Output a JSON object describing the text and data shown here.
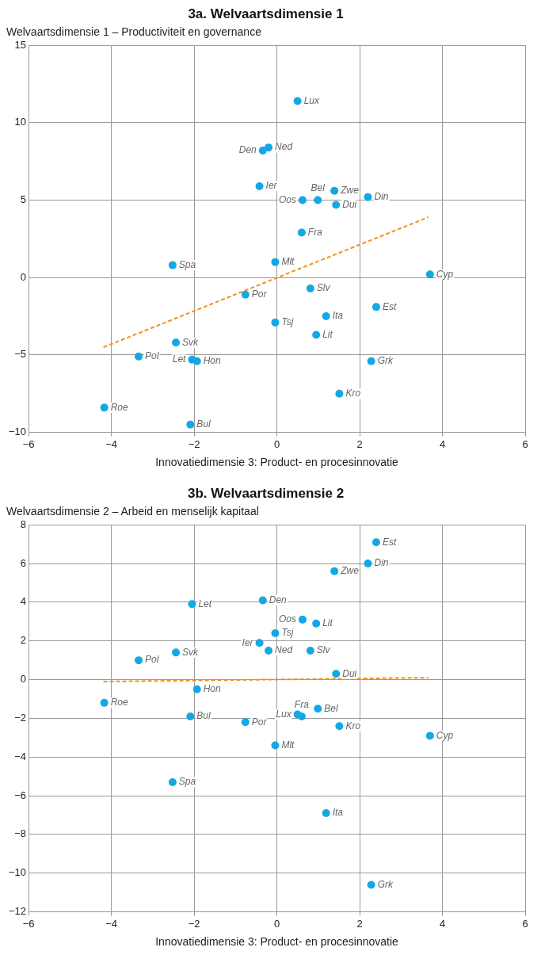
{
  "chart_data": [
    {
      "type": "scatter",
      "title": "3a. Welvaartsdimensie 1",
      "subtitle": "Welvaartsdimensie 1 – Productiviteit en governance",
      "xlabel": "Innovatiedimensie 3: Product- en procesinnovatie",
      "xlim": [
        -6,
        6
      ],
      "xticks": [
        {
          "value": -6,
          "label": "−6"
        },
        {
          "value": -4,
          "label": "−4"
        },
        {
          "value": -2,
          "label": "−2"
        },
        0,
        2,
        4,
        6
      ],
      "ylim": [
        -10,
        15
      ],
      "yticks": [
        {
          "value": -10,
          "label": "−10"
        },
        {
          "value": -5,
          "label": "−5"
        },
        0,
        5,
        10,
        15
      ],
      "grid": true,
      "legend": false,
      "marker": "circle",
      "series": [
        {
          "type": "scatter",
          "color": "#13a8e4",
          "x": [
            0.5,
            -0.2,
            -0.34,
            -0.42,
            0.62,
            0.99,
            1.39,
            1.43,
            2.2,
            0.6,
            -2.52,
            -0.04,
            3.7,
            -0.76,
            0.81,
            1.19,
            2.4,
            -0.04,
            0.95,
            -2.44,
            -3.34,
            -2.05,
            -1.93,
            2.28,
            1.51,
            -4.17,
            -2.09
          ],
          "values": [
            11.4,
            8.4,
            8.2,
            5.9,
            5.0,
            5.0,
            5.6,
            4.7,
            5.2,
            2.9,
            0.8,
            1.0,
            0.2,
            -1.1,
            -0.7,
            -2.5,
            -1.9,
            -2.9,
            -3.7,
            -4.2,
            -5.1,
            -5.3,
            -5.4,
            -5.4,
            -7.5,
            -8.4,
            -9.5
          ],
          "value_labels": [
            "Lux",
            "Ned",
            "Den",
            "Ier",
            "Oos",
            "Bel",
            "Zwe",
            "Dui",
            "Din",
            "Fra",
            "Spa",
            "Mlt",
            "Cyp",
            "Por",
            "Slv",
            "Ita",
            "Est",
            "Tsj",
            "Lit",
            "Svk",
            "Pol",
            "Let",
            "Hon",
            "Grk",
            "Kro",
            "Roe",
            "Bul"
          ]
        },
        {
          "type": "line",
          "color": "#f0901e",
          "line_style": "dashed",
          "marker": "none",
          "x": [
            -4.19,
            3.66
          ],
          "values": [
            -4.5,
            3.9
          ]
        }
      ]
    },
    {
      "type": "scatter",
      "title": "3b. Welvaartsdimensie 2",
      "subtitle": "Welvaartsdimensie 2 – Arbeid en menselijk kapitaal",
      "xlabel": "Innovatiedimensie 3: Product- en procesinnovatie",
      "xlim": [
        -6,
        6
      ],
      "xticks": [
        {
          "value": -6,
          "label": "−6"
        },
        {
          "value": -4,
          "label": "−4"
        },
        {
          "value": -2,
          "label": "−2"
        },
        0,
        2,
        4,
        6
      ],
      "ylim": [
        -12,
        8
      ],
      "yticks": [
        {
          "value": -12,
          "label": "−12"
        },
        {
          "value": -10,
          "label": "−10"
        },
        {
          "value": -8,
          "label": "−8"
        },
        {
          "value": -6,
          "label": "−6"
        },
        {
          "value": -4,
          "label": "−4"
        },
        {
          "value": -2,
          "label": "−2"
        },
        0,
        2,
        4,
        6,
        8
      ],
      "grid": true,
      "legend": false,
      "marker": "circle",
      "series": [
        {
          "type": "scatter",
          "color": "#13a8e4",
          "x": [
            2.4,
            2.2,
            1.39,
            -2.05,
            -0.34,
            0.62,
            0.95,
            -0.42,
            -0.04,
            -0.2,
            0.81,
            -2.44,
            -3.34,
            1.43,
            -1.93,
            -4.17,
            0.5,
            0.6,
            0.99,
            -2.09,
            -0.76,
            1.51,
            3.7,
            -0.04,
            -2.52,
            1.19,
            2.28
          ],
          "values": [
            7.1,
            6.0,
            5.6,
            3.9,
            4.1,
            3.1,
            2.9,
            1.9,
            2.4,
            1.5,
            1.5,
            1.4,
            1.0,
            0.3,
            -0.5,
            -1.2,
            -1.8,
            -1.9,
            -1.5,
            -1.9,
            -2.2,
            -2.4,
            -2.9,
            -3.4,
            -5.3,
            -6.9,
            -10.6
          ],
          "value_labels": [
            "Est",
            "Din",
            "Zwe",
            "Let",
            "Den",
            "Oos",
            "Lit",
            "Ier",
            "Tsj",
            "Ned",
            "Slv",
            "Svk",
            "Pol",
            "Dui",
            "Hon",
            "Roe",
            "Lux",
            "Fra",
            "Bel",
            "Bul",
            "Por",
            "Kro",
            "Cyp",
            "Mlt",
            "Spa",
            "Ita",
            "Grk"
          ]
        },
        {
          "type": "line",
          "color": "#f0901e",
          "line_style": "dashed",
          "marker": "none",
          "x": [
            -4.19,
            3.66
          ],
          "values": [
            -0.1,
            0.1
          ]
        }
      ]
    }
  ]
}
